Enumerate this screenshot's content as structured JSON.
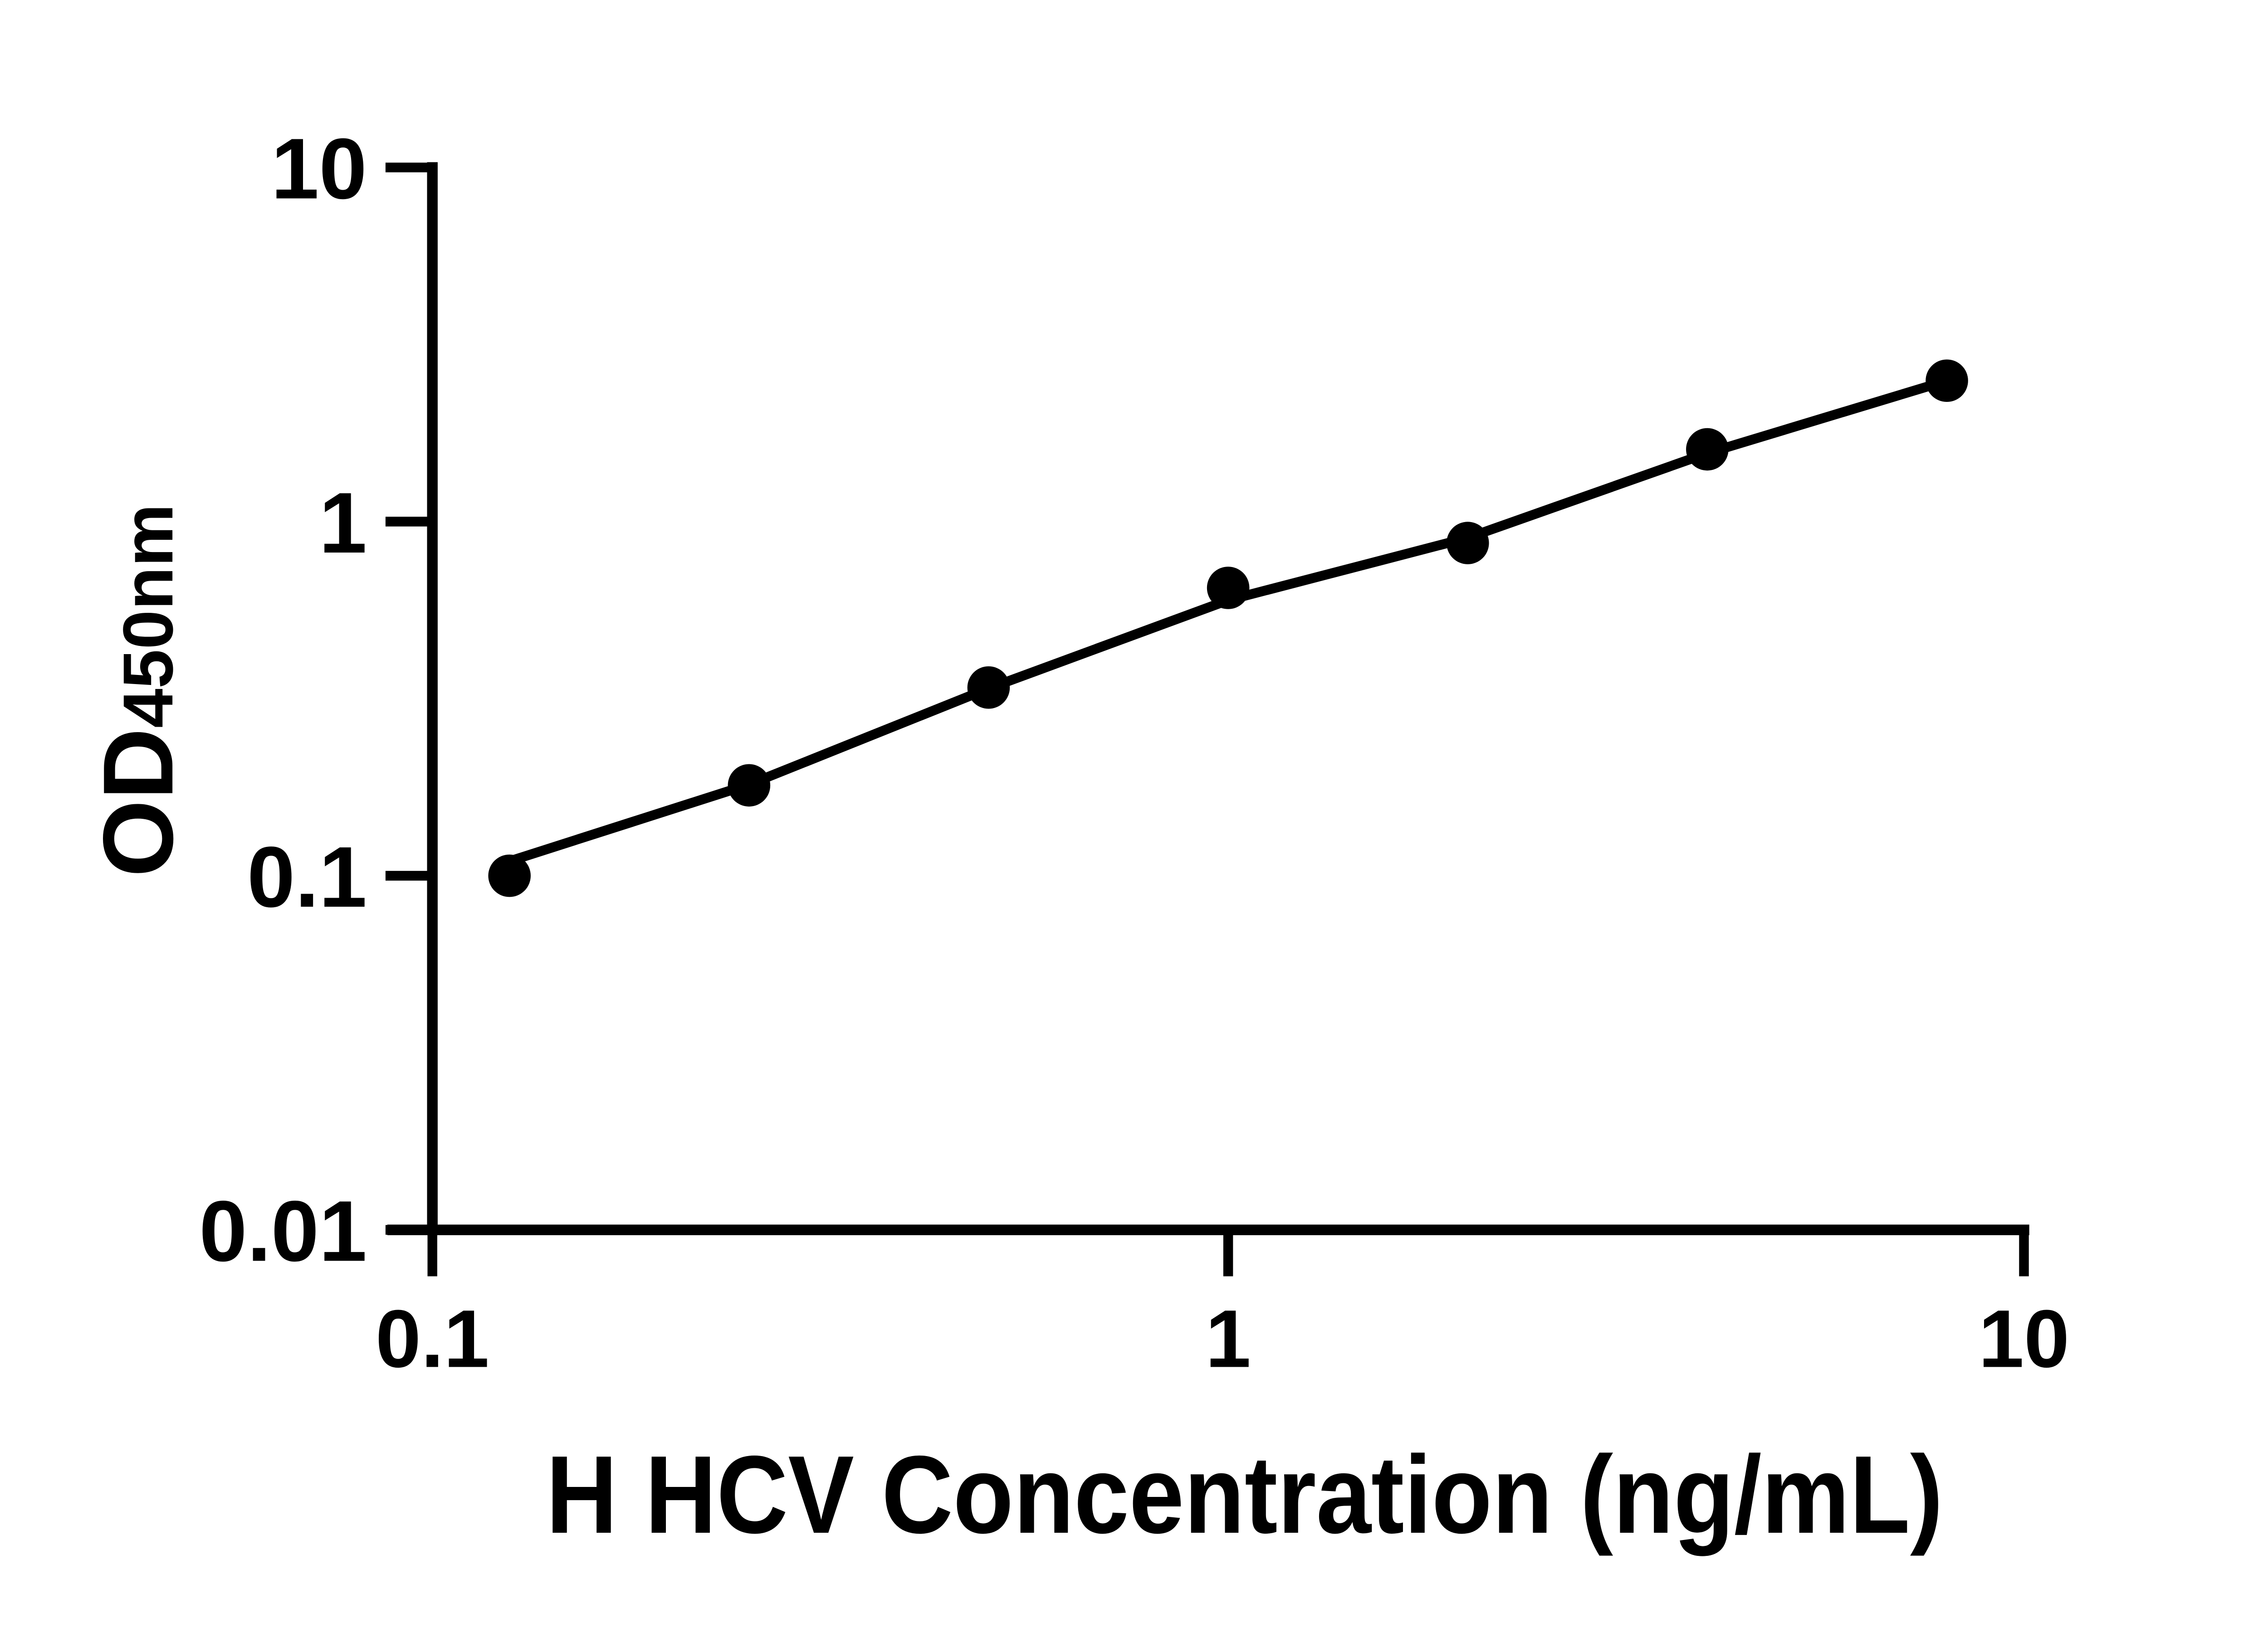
{
  "figure": {
    "background_color": "#FFFFFF",
    "ink_color": "#000000"
  },
  "chart_data": {
    "type": "scatter",
    "title": "",
    "xlabel": "H HCV Concentration (ng/mL)",
    "ylabel_main": "OD",
    "ylabel_sub": "450nm",
    "x_scale": "log",
    "y_scale": "log",
    "xlim": [
      0.1,
      10
    ],
    "ylim": [
      0.01,
      10
    ],
    "grid": false,
    "legend": null,
    "x_ticks": [
      {
        "value": 0.1,
        "label": "0.1"
      },
      {
        "value": 1,
        "label": "1"
      },
      {
        "value": 10,
        "label": "10"
      }
    ],
    "y_ticks": [
      {
        "value": 0.01,
        "label": "0.01"
      },
      {
        "value": 0.1,
        "label": "0.1"
      },
      {
        "value": 1,
        "label": "1"
      },
      {
        "value": 10,
        "label": "10"
      }
    ],
    "series": [
      {
        "name": "standard-points",
        "type": "scatter",
        "marker": "filled-circle",
        "color": "#000000",
        "points": [
          [
            0.125,
            0.1
          ],
          [
            0.25,
            0.18
          ],
          [
            0.5,
            0.34
          ],
          [
            1,
            0.65
          ],
          [
            2,
            0.87
          ],
          [
            4,
            1.6
          ],
          [
            8,
            2.5
          ]
        ]
      },
      {
        "name": "fit-line",
        "type": "line",
        "color": "#000000",
        "points": [
          [
            0.122,
            0.108
          ],
          [
            0.25,
            0.181
          ],
          [
            0.5,
            0.338
          ],
          [
            1,
            0.6
          ],
          [
            2,
            0.9
          ],
          [
            4,
            1.56
          ],
          [
            8,
            2.5
          ]
        ]
      }
    ]
  }
}
